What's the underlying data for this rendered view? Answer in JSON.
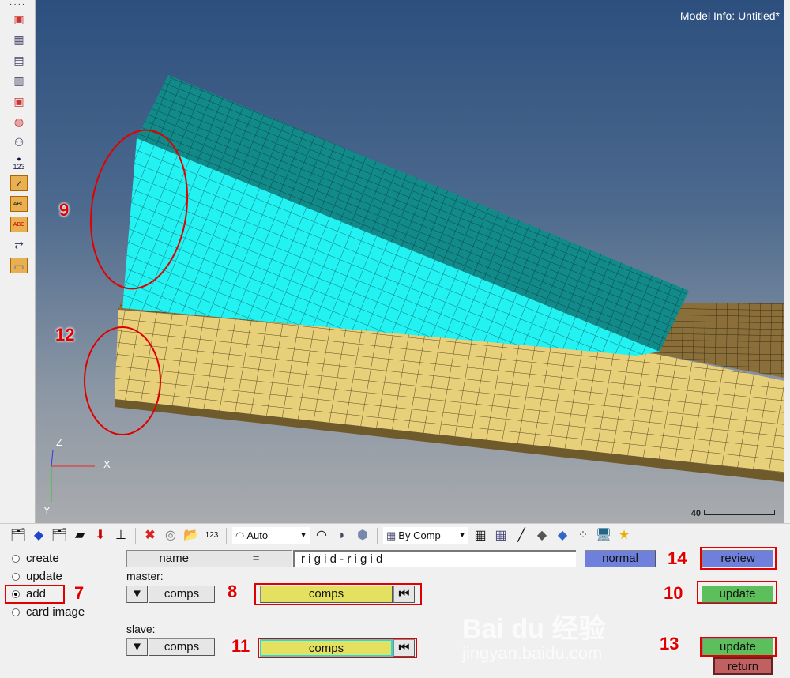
{
  "viewport": {
    "model_info": "Model Info: Untitled*",
    "scale_label": "40",
    "axes": {
      "x": "X",
      "y": "Y",
      "z": "Z"
    },
    "colors": {
      "bg_top": "#2c4f7e",
      "bg_bottom": "#a9abae",
      "upper_top_face": "#128a8a",
      "upper_side_face": "#22f2f2",
      "lower_body": "#e8cf7a",
      "lower_top_face": "#8a6f3a",
      "highlight": "#e00000"
    }
  },
  "left_toolbar": {
    "icons": [
      "display-icon",
      "mask-icon",
      "find-icon",
      "unmask-icon",
      "reverse-icon",
      "isolate-icon",
      "binoculars-icon",
      "info-123-icon",
      "measure-angle-icon",
      "label-abc-icon",
      "label-abc-red-icon",
      "rotate-icon",
      "panel-icon"
    ],
    "info_label": "123"
  },
  "toolbar": {
    "color_mode": "Auto",
    "display_by": "By Comp"
  },
  "panel": {
    "radios": [
      {
        "label": "create",
        "selected": false
      },
      {
        "label": "update",
        "selected": false
      },
      {
        "label": "add",
        "selected": true
      },
      {
        "label": "card image",
        "selected": false
      }
    ],
    "name_label": "name",
    "equals": "=",
    "name_value": "r i g i d - r i g i d",
    "master_label": "master:",
    "master_type": "comps",
    "master_selector": "comps",
    "slave_label": "slave:",
    "slave_type": "comps",
    "slave_selector": "comps",
    "buttons": {
      "normal": "normal",
      "review": "review",
      "update_master": "update",
      "update_slave": "update",
      "return": "return"
    }
  },
  "annotations": {
    "a7": "7",
    "a8": "8",
    "a9": "9",
    "a10": "10",
    "a11": "11",
    "a12": "12",
    "a13": "13",
    "a14": "14"
  },
  "watermark": {
    "brand": "Bai du 经验",
    "url": "jingyan.baidu.com"
  }
}
